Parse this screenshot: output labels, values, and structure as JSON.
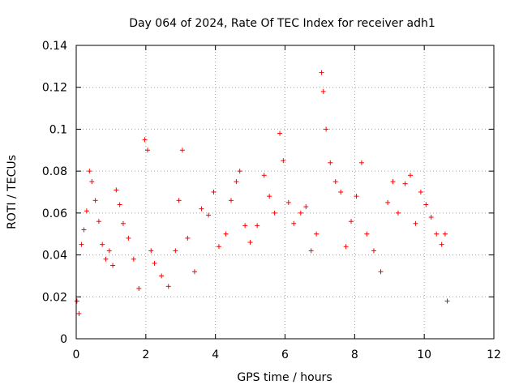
{
  "chart_data": {
    "type": "scatter",
    "title": "Day 064 of 2024, Rate Of TEC Index for receiver adh1",
    "xlabel": "GPS time / hours",
    "ylabel": "ROTI / TECUs",
    "xlim": [
      0,
      12
    ],
    "ylim": [
      0,
      0.14
    ],
    "x_ticks": [
      "0",
      "2",
      "4",
      "6",
      "8",
      "10",
      "12"
    ],
    "y_ticks": [
      "0",
      "0.02",
      "0.04",
      "0.06",
      "0.08",
      "0.1",
      "0.12",
      "0.14"
    ],
    "grid": true,
    "marker": "+",
    "color": "#ff0000",
    "series": [
      {
        "name": "ROTI",
        "points": [
          [
            0.02,
            0.018
          ],
          [
            0.08,
            0.012
          ],
          [
            0.15,
            0.045
          ],
          [
            0.22,
            0.052
          ],
          [
            0.3,
            0.061
          ],
          [
            0.38,
            0.08
          ],
          [
            0.45,
            0.075
          ],
          [
            0.55,
            0.066
          ],
          [
            0.65,
            0.056
          ],
          [
            0.75,
            0.045
          ],
          [
            0.85,
            0.038
          ],
          [
            0.95,
            0.042
          ],
          [
            1.05,
            0.035
          ],
          [
            1.15,
            0.071
          ],
          [
            1.25,
            0.064
          ],
          [
            1.35,
            0.055
          ],
          [
            1.5,
            0.048
          ],
          [
            1.65,
            0.038
          ],
          [
            1.8,
            0.024
          ],
          [
            1.97,
            0.095
          ],
          [
            2.05,
            0.09
          ],
          [
            2.15,
            0.042
          ],
          [
            2.25,
            0.036
          ],
          [
            2.45,
            0.03
          ],
          [
            2.65,
            0.025
          ],
          [
            2.85,
            0.042
          ],
          [
            2.95,
            0.066
          ],
          [
            3.05,
            0.09
          ],
          [
            3.2,
            0.048
          ],
          [
            3.4,
            0.032
          ],
          [
            3.6,
            0.062
          ],
          [
            3.8,
            0.059
          ],
          [
            3.95,
            0.07
          ],
          [
            4.1,
            0.044
          ],
          [
            4.3,
            0.05
          ],
          [
            4.45,
            0.066
          ],
          [
            4.6,
            0.075
          ],
          [
            4.7,
            0.08
          ],
          [
            4.85,
            0.054
          ],
          [
            5.0,
            0.046
          ],
          [
            5.2,
            0.054
          ],
          [
            5.4,
            0.078
          ],
          [
            5.55,
            0.068
          ],
          [
            5.7,
            0.06
          ],
          [
            5.85,
            0.098
          ],
          [
            5.95,
            0.085
          ],
          [
            6.1,
            0.065
          ],
          [
            6.25,
            0.055
          ],
          [
            6.45,
            0.06
          ],
          [
            6.6,
            0.063
          ],
          [
            6.75,
            0.042
          ],
          [
            6.9,
            0.05
          ],
          [
            7.05,
            0.127
          ],
          [
            7.1,
            0.118
          ],
          [
            7.18,
            0.1
          ],
          [
            7.3,
            0.084
          ],
          [
            7.45,
            0.075
          ],
          [
            7.6,
            0.07
          ],
          [
            7.75,
            0.044
          ],
          [
            7.9,
            0.056
          ],
          [
            8.05,
            0.068
          ],
          [
            8.2,
            0.084
          ],
          [
            8.35,
            0.05
          ],
          [
            8.55,
            0.042
          ],
          [
            8.75,
            0.032
          ],
          [
            8.95,
            0.065
          ],
          [
            9.1,
            0.075
          ],
          [
            9.25,
            0.06
          ],
          [
            9.45,
            0.074
          ],
          [
            9.6,
            0.078
          ],
          [
            9.75,
            0.055
          ],
          [
            9.9,
            0.07
          ],
          [
            10.05,
            0.064
          ],
          [
            10.2,
            0.058
          ],
          [
            10.35,
            0.05
          ],
          [
            10.5,
            0.045
          ],
          [
            10.6,
            0.05
          ],
          [
            10.66,
            0.018
          ]
        ]
      }
    ]
  }
}
